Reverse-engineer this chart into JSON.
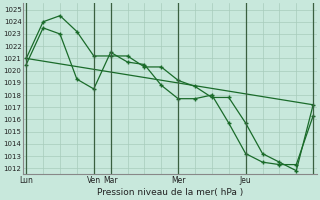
{
  "background_color": "#c8e8dc",
  "grid_color": "#a8ccbc",
  "line_color": "#1a6b2a",
  "xlabel": "Pression niveau de la mer( hPa )",
  "ylim": [
    1011.5,
    1025.5
  ],
  "yticks": [
    1012,
    1013,
    1014,
    1015,
    1016,
    1017,
    1018,
    1019,
    1020,
    1021,
    1022,
    1023,
    1024,
    1025
  ],
  "xlim": [
    -0.2,
    17.2
  ],
  "day_positions": [
    0,
    4,
    5,
    9,
    13,
    17
  ],
  "day_labels": [
    "Lun",
    "Ven",
    "Mar",
    "Mer",
    "Jeu"
  ],
  "series1_x": [
    0,
    1,
    2,
    3,
    4,
    5,
    6,
    7,
    8,
    9,
    10,
    11,
    12,
    13,
    14,
    15,
    16,
    17
  ],
  "series1_y": [
    1021.0,
    1024.0,
    1024.5,
    1023.2,
    1021.2,
    1021.2,
    1021.2,
    1020.3,
    1020.3,
    1019.2,
    1018.7,
    1017.8,
    1017.8,
    1015.7,
    1013.2,
    1012.5,
    1011.8,
    1017.2
  ],
  "series2_x": [
    0,
    1,
    2,
    3,
    4,
    5,
    6,
    7,
    8,
    9,
    10,
    11,
    12,
    13,
    14,
    15,
    16,
    17
  ],
  "series2_y": [
    1020.5,
    1023.5,
    1023.0,
    1019.3,
    1018.5,
    1021.5,
    1020.7,
    1020.5,
    1018.8,
    1017.7,
    1017.7,
    1018.0,
    1015.7,
    1013.2,
    1012.5,
    1012.3,
    1012.3,
    1016.3
  ],
  "ref_line_x": [
    0,
    17
  ],
  "ref_line_y": [
    1021.0,
    1017.2
  ]
}
